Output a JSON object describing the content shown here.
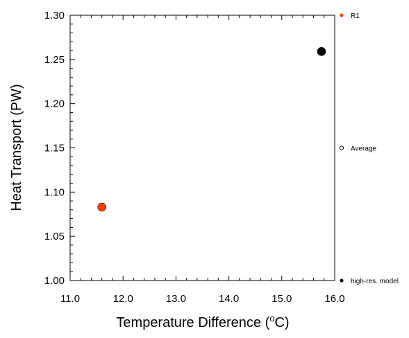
{
  "chart_data": {
    "type": "scatter",
    "xlabel": "Temperature Difference (",
    "xlabel_unit_sup": "o",
    "xlabel_unit": "C)",
    "ylabel": "Heat Transport (PW)",
    "xlim": [
      11.0,
      16.0
    ],
    "ylim": [
      1.0,
      1.3
    ],
    "xticks": [
      "11.0",
      "12.0",
      "13.0",
      "14.0",
      "15.0",
      "16.0"
    ],
    "yticks": [
      "1.00",
      "1.05",
      "1.10",
      "1.15",
      "1.20",
      "1.25",
      "1.30"
    ],
    "grid": false,
    "series": [
      {
        "name": "R1",
        "color": "#ff4000",
        "x": [
          11.6
        ],
        "y": [
          1.083
        ]
      },
      {
        "name": "high-res. model",
        "color": "#000000",
        "x": [
          15.75
        ],
        "y": [
          1.259
        ]
      }
    ],
    "legend": {
      "placement": "right-outside",
      "entries": [
        {
          "label": "R1",
          "marker": "filled-circle",
          "color": "#ff4000",
          "value": 1.3
        },
        {
          "label": "Average",
          "marker": "open-circle",
          "color": "#000000",
          "value": 1.15
        },
        {
          "label": "high-res. model",
          "marker": "filled-circle",
          "color": "#000000",
          "value": 1.0
        }
      ]
    }
  }
}
